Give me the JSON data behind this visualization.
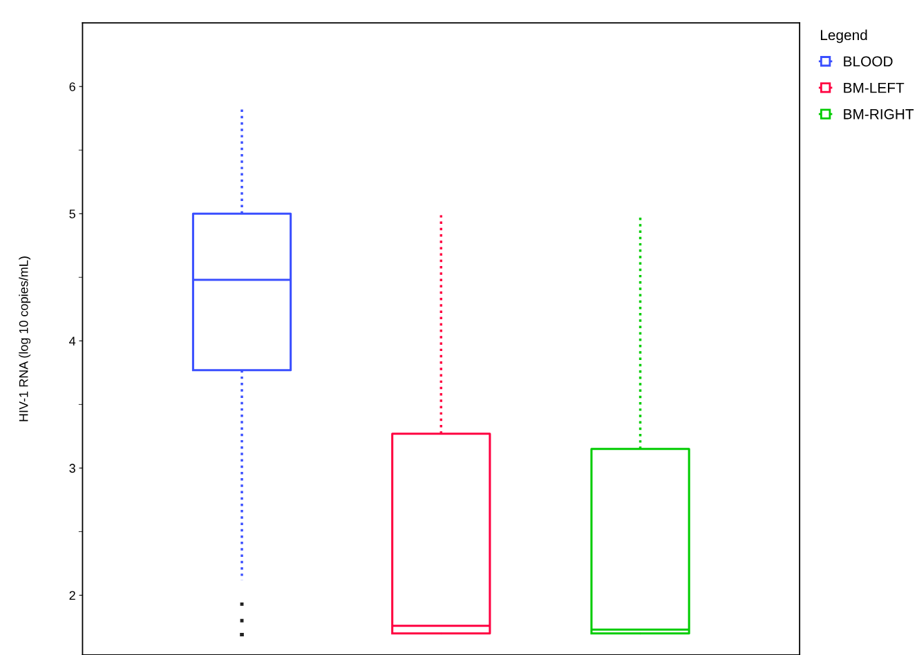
{
  "chart_data": {
    "type": "box",
    "ylabel": "HIV-1 RNA (log 10 copies/mL)",
    "legend_title": "Legend",
    "categories": [
      null,
      null,
      null
    ],
    "series": [
      {
        "name": "BLOOD",
        "color": "#3a4fff",
        "boxes": [
          {
            "low": 2.12,
            "q1": 3.77,
            "median": 4.48,
            "q3": 5.0,
            "high": 5.84,
            "outliers": [
              1.93,
              1.8,
              1.69,
              1.69,
              1.69
            ]
          },
          null,
          null
        ]
      },
      {
        "name": "BM-LEFT",
        "color": "#ff0040",
        "boxes": [
          null,
          {
            "low": 1.7,
            "q1": 1.7,
            "median": 1.76,
            "q3": 3.27,
            "high": 5.0
          },
          null
        ]
      },
      {
        "name": "BM-RIGHT",
        "color": "#00cc00",
        "boxes": [
          null,
          null,
          {
            "low": 1.7,
            "q1": 1.7,
            "median": 1.73,
            "q3": 3.15,
            "high": 5.0
          }
        ]
      }
    ],
    "ylim": [
      1.53,
      6.5
    ],
    "yticks": [
      2,
      3,
      4,
      5,
      6
    ],
    "tick_labels": "y",
    "grid": false,
    "legend": "top right",
    "line_style": "dotted"
  }
}
